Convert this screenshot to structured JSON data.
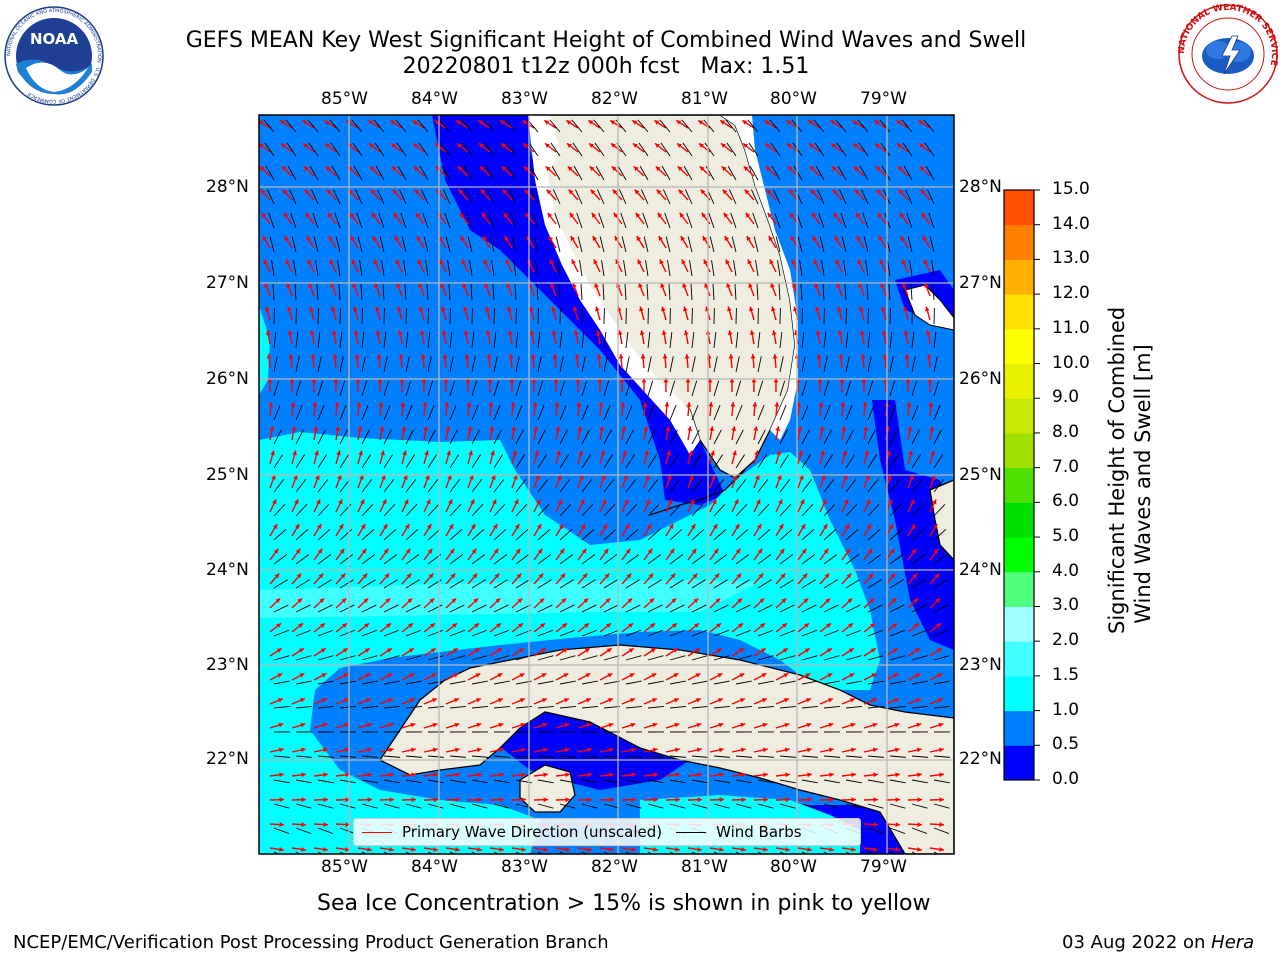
{
  "title": {
    "line1": "GEFS MEAN Key West Significant Height of Combined Wind Waves and Swell",
    "line2": "20220801 t12z 000h fcst   Max: 1.51"
  },
  "map": {
    "lon_ticks": [
      "85°W",
      "84°W",
      "83°W",
      "82°W",
      "81°W",
      "80°W",
      "79°W"
    ],
    "lat_ticks": [
      "28°N",
      "27°N",
      "26°N",
      "25°N",
      "24°N",
      "23°N",
      "22°N"
    ],
    "legend": {
      "wave_label": "Primary Wave Direction (unscaled)",
      "wave_color": "#ff0000",
      "barb_label": "Wind Barbs",
      "barb_color": "#000000"
    },
    "colors": {
      "land": "#eeeddf",
      "coast": "#000000",
      "grid": "#b8b8b8"
    }
  },
  "colorbar": {
    "label_line1": "Significant Height of Combined",
    "label_line2": "Wind Waves and Swell [m]",
    "ticks": [
      "0.0",
      "0.5",
      "1.0",
      "1.5",
      "2.0",
      "3.0",
      "4.0",
      "5.0",
      "6.0",
      "7.0",
      "8.0",
      "9.0",
      "10.0",
      "11.0",
      "12.0",
      "13.0",
      "14.0",
      "15.0"
    ],
    "colors": [
      "#0000ff",
      "#0080ff",
      "#00ffff",
      "#40ffff",
      "#a0ffff",
      "#50ff80",
      "#00ff00",
      "#00e000",
      "#50e000",
      "#a0e000",
      "#c8e800",
      "#e8f000",
      "#ffff00",
      "#ffe000",
      "#ffb000",
      "#ff8000",
      "#ff5000",
      "#ff2000",
      "#ff0000"
    ]
  },
  "sea_ice_note": "Sea Ice Concentration > 15% is shown in pink to yellow",
  "footer": {
    "left": "NCEP/EMC/Verification Post Processing Product Generation Branch",
    "right_prefix": "03 Aug 2022 on ",
    "right_host": "Hera"
  },
  "logos": {
    "noaa": "NOAA",
    "noaa_ring": "NATIONAL OCEANIC AND ATMOSPHERIC ADMINISTRATION · U.S. DEPARTMENT OF COMMERCE",
    "nws_ring": "NATIONAL WEATHER SERVICE"
  }
}
